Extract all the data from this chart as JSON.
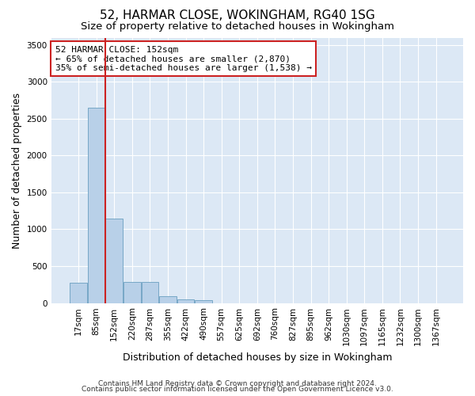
{
  "title1": "52, HARMAR CLOSE, WOKINGHAM, RG40 1SG",
  "title2": "Size of property relative to detached houses in Wokingham",
  "xlabel": "Distribution of detached houses by size in Wokingham",
  "ylabel": "Number of detached properties",
  "footer1": "Contains HM Land Registry data © Crown copyright and database right 2024.",
  "footer2": "Contains public sector information licensed under the Open Government Licence v3.0.",
  "categories": [
    "17sqm",
    "85sqm",
    "152sqm",
    "220sqm",
    "287sqm",
    "355sqm",
    "422sqm",
    "490sqm",
    "557sqm",
    "625sqm",
    "692sqm",
    "760sqm",
    "827sqm",
    "895sqm",
    "962sqm",
    "1030sqm",
    "1097sqm",
    "1165sqm",
    "1232sqm",
    "1300sqm",
    "1367sqm"
  ],
  "values": [
    270,
    2650,
    1140,
    280,
    280,
    90,
    50,
    35,
    0,
    0,
    0,
    0,
    0,
    0,
    0,
    0,
    0,
    0,
    0,
    0,
    0
  ],
  "bar_color": "#b8d0e8",
  "bar_edge_color": "#6a9fc0",
  "highlight_index": 2,
  "highlight_line_color": "#cc2222",
  "annotation_line1": "52 HARMAR CLOSE: 152sqm",
  "annotation_line2": "← 65% of detached houses are smaller (2,870)",
  "annotation_line3": "35% of semi-detached houses are larger (1,538) →",
  "annotation_box_color": "#cc2222",
  "annotation_box_bg": "#ffffff",
  "ylim": [
    0,
    3600
  ],
  "yticks": [
    0,
    500,
    1000,
    1500,
    2000,
    2500,
    3000,
    3500
  ],
  "plot_bg_color": "#dce8f5",
  "title1_fontsize": 11,
  "title2_fontsize": 9.5,
  "axis_label_fontsize": 9,
  "tick_fontsize": 7.5,
  "footer_fontsize": 6.5,
  "annot_fontsize": 8
}
